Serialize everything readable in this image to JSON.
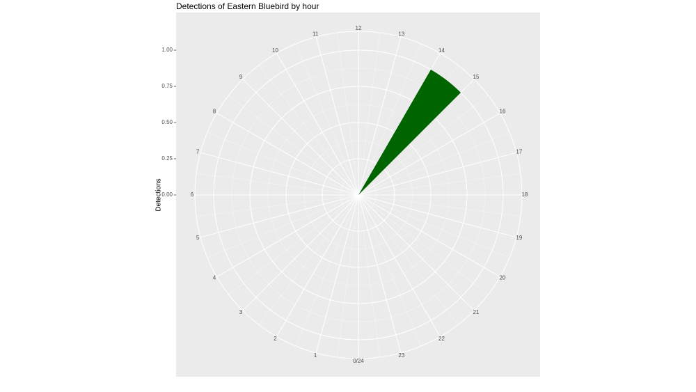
{
  "chart_data": {
    "type": "polar_bar",
    "title": "Detections of Eastern Bluebird by hour",
    "y_label": "Detections",
    "bars": [
      {
        "start": 14,
        "end": 15,
        "value": 1.0
      }
    ],
    "color": "#006400",
    "xlim": [
      0,
      24
    ],
    "xticks": [
      {
        "value": 0,
        "label": "0/24"
      },
      1,
      2,
      3,
      4,
      5,
      6,
      7,
      8,
      9,
      10,
      11,
      12,
      13,
      14,
      15,
      16,
      17,
      18,
      19,
      20,
      21,
      22,
      23
    ],
    "ylim": [
      0,
      1.13
    ],
    "yticks": [
      {
        "value": 0,
        "label": "0.00"
      },
      {
        "value": 0.25,
        "label": "0.25"
      },
      {
        "value": 0.5,
        "label": "0.50"
      },
      {
        "value": 0.75,
        "label": "0.75"
      },
      {
        "value": 1.0,
        "label": "1.00"
      }
    ],
    "grid": true
  }
}
